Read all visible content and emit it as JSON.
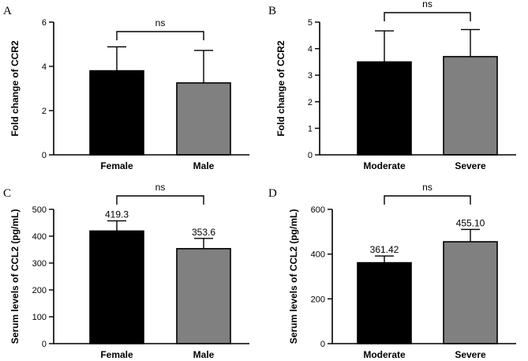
{
  "chart_data": [
    {
      "panel": "A",
      "type": "bar",
      "categories": [
        "Female",
        "Male"
      ],
      "values": [
        3.8,
        3.25
      ],
      "errors": [
        1.08,
        1.47
      ],
      "colors": [
        "#000000",
        "#808080"
      ],
      "ylabel": "Fold change of CCR2",
      "ylim": [
        0,
        6
      ],
      "yticks": [
        0,
        2,
        4,
        6
      ],
      "value_labels": [],
      "significance": "ns"
    },
    {
      "panel": "B",
      "type": "bar",
      "categories": [
        "Moderate",
        "Severe"
      ],
      "values": [
        3.5,
        3.7
      ],
      "errors": [
        1.17,
        1.02
      ],
      "colors": [
        "#000000",
        "#808080"
      ],
      "ylabel": "Fold change of CCR2",
      "ylim": [
        0,
        5
      ],
      "yticks": [
        0,
        1,
        2,
        3,
        4,
        5
      ],
      "value_labels": [],
      "significance": "ns"
    },
    {
      "panel": "C",
      "type": "bar",
      "categories": [
        "Female",
        "Male"
      ],
      "values": [
        419.3,
        353.6
      ],
      "errors": [
        38,
        38
      ],
      "colors": [
        "#000000",
        "#808080"
      ],
      "ylabel": "Serum levels of CCL2 (pg/mL)",
      "ylim": [
        0,
        500
      ],
      "yticks": [
        0,
        100,
        200,
        300,
        400,
        500
      ],
      "value_labels": [
        "419.3",
        "353.6"
      ],
      "significance": "ns"
    },
    {
      "panel": "D",
      "type": "bar",
      "categories": [
        "Moderate",
        "Severe"
      ],
      "values": [
        361.42,
        455.1
      ],
      "errors": [
        30,
        55
      ],
      "colors": [
        "#000000",
        "#808080"
      ],
      "ylabel": "Serum levels of CCL2 (pg/mL)",
      "ylim": [
        0,
        600
      ],
      "yticks": [
        0,
        200,
        400,
        600
      ],
      "value_labels": [
        "361.42",
        "455.10"
      ],
      "significance": "ns"
    }
  ]
}
